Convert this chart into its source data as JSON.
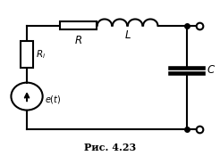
{
  "fig_width": 2.46,
  "fig_height": 1.84,
  "dpi": 100,
  "caption": "Рис. 4.23",
  "bg_color": "#ffffff",
  "line_color": "#000000",
  "lw": 1.5
}
